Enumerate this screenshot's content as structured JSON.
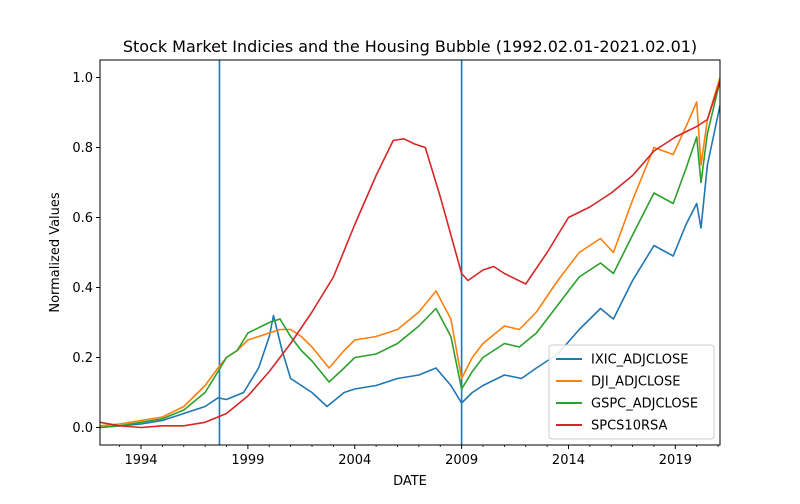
{
  "chart_data": {
    "type": "line",
    "title": "Stock Market Indicies and the Housing Bubble (1992.02.01-2021.02.01)",
    "xlabel": "DATE",
    "ylabel": "Normalized Values",
    "xlim": [
      1992.08,
      2021.09
    ],
    "ylim": [
      -0.05,
      1.05
    ],
    "x_ticks": [
      1994,
      1999,
      2004,
      2009,
      2014,
      2019
    ],
    "x_tick_labels": [
      "1994",
      "1999",
      "2004",
      "2009",
      "2014",
      "2019"
    ],
    "y_ticks": [
      0.0,
      0.2,
      0.4,
      0.6,
      0.8,
      1.0
    ],
    "y_tick_labels": [
      "0.0",
      "0.2",
      "0.4",
      "0.6",
      "0.8",
      "1.0"
    ],
    "grid": false,
    "legend_placement": "lower right",
    "vlines": [
      {
        "x": 1997.67,
        "color": "#1f77b4"
      },
      {
        "x": 2009.0,
        "color": "#1f77b4"
      }
    ],
    "series": [
      {
        "name": "IXIC_ADJCLOSE",
        "color": "#1f77b4",
        "x": [
          1992.08,
          1993.0,
          1994.0,
          1995.0,
          1996.0,
          1997.0,
          1997.6,
          1998.0,
          1998.8,
          1999.5,
          2000.0,
          2000.2,
          2000.6,
          2001.0,
          2001.5,
          2002.0,
          2002.7,
          2003.5,
          2004.0,
          2005.0,
          2006.0,
          2007.0,
          2007.8,
          2008.5,
          2009.0,
          2009.5,
          2010.0,
          2011.0,
          2011.8,
          2012.5,
          2013.5,
          2014.5,
          2015.5,
          2016.1,
          2017.0,
          2018.0,
          2018.9,
          2019.5,
          2020.0,
          2020.2,
          2020.5,
          2021.09
        ],
        "y": [
          0.0,
          0.005,
          0.01,
          0.02,
          0.04,
          0.06,
          0.085,
          0.08,
          0.1,
          0.17,
          0.26,
          0.32,
          0.22,
          0.14,
          0.12,
          0.1,
          0.06,
          0.1,
          0.11,
          0.12,
          0.14,
          0.15,
          0.17,
          0.12,
          0.07,
          0.1,
          0.12,
          0.15,
          0.14,
          0.17,
          0.21,
          0.28,
          0.34,
          0.31,
          0.42,
          0.52,
          0.49,
          0.58,
          0.64,
          0.57,
          0.75,
          0.92
        ]
      },
      {
        "name": "DJI_ADJCLOSE",
        "color": "#ff7f0e",
        "x": [
          1992.08,
          1993.0,
          1994.0,
          1995.0,
          1996.0,
          1997.0,
          1997.6,
          1998.0,
          1998.5,
          1999.0,
          2000.0,
          2000.5,
          2001.0,
          2001.5,
          2002.0,
          2002.8,
          2003.5,
          2004.0,
          2005.0,
          2006.0,
          2007.0,
          2007.8,
          2008.5,
          2009.0,
          2009.5,
          2010.0,
          2011.0,
          2011.7,
          2012.5,
          2013.5,
          2014.5,
          2015.5,
          2016.1,
          2017.0,
          2018.0,
          2018.9,
          2019.5,
          2020.0,
          2020.2,
          2020.5,
          2021.09
        ],
        "y": [
          0.005,
          0.01,
          0.02,
          0.03,
          0.06,
          0.12,
          0.17,
          0.2,
          0.22,
          0.25,
          0.27,
          0.28,
          0.28,
          0.26,
          0.23,
          0.17,
          0.22,
          0.25,
          0.26,
          0.28,
          0.33,
          0.39,
          0.31,
          0.14,
          0.2,
          0.24,
          0.29,
          0.28,
          0.33,
          0.42,
          0.5,
          0.54,
          0.5,
          0.65,
          0.8,
          0.78,
          0.86,
          0.93,
          0.75,
          0.88,
          1.0
        ]
      },
      {
        "name": "GSPC_ADJCLOSE",
        "color": "#2ca02c",
        "x": [
          1992.08,
          1993.0,
          1994.0,
          1995.0,
          1996.0,
          1997.0,
          1997.6,
          1998.0,
          1998.5,
          1999.0,
          2000.0,
          2000.5,
          2001.0,
          2001.5,
          2002.0,
          2002.8,
          2003.5,
          2004.0,
          2005.0,
          2006.0,
          2007.0,
          2007.8,
          2008.5,
          2009.0,
          2009.5,
          2010.0,
          2011.0,
          2011.7,
          2012.5,
          2013.5,
          2014.5,
          2015.5,
          2016.1,
          2017.0,
          2018.0,
          2018.9,
          2019.5,
          2020.0,
          2020.2,
          2020.5,
          2021.09
        ],
        "y": [
          0.0,
          0.005,
          0.015,
          0.025,
          0.05,
          0.1,
          0.16,
          0.2,
          0.22,
          0.27,
          0.3,
          0.31,
          0.26,
          0.22,
          0.19,
          0.13,
          0.17,
          0.2,
          0.21,
          0.24,
          0.29,
          0.34,
          0.26,
          0.11,
          0.16,
          0.2,
          0.24,
          0.23,
          0.27,
          0.35,
          0.43,
          0.47,
          0.44,
          0.55,
          0.67,
          0.64,
          0.74,
          0.83,
          0.7,
          0.84,
          0.99
        ]
      },
      {
        "name": "SPCS10RSA",
        "color": "#d62728",
        "x": [
          1992.08,
          1993.0,
          1994.0,
          1995.0,
          1996.0,
          1997.0,
          1998.0,
          1999.0,
          2000.0,
          2001.0,
          2002.0,
          2003.0,
          2004.0,
          2005.0,
          2005.8,
          2006.3,
          2006.8,
          2007.3,
          2008.0,
          2009.0,
          2009.3,
          2010.0,
          2010.5,
          2011.0,
          2012.0,
          2013.0,
          2014.0,
          2015.0,
          2016.0,
          2017.0,
          2018.0,
          2019.0,
          2020.0,
          2020.5,
          2021.09
        ],
        "y": [
          0.015,
          0.005,
          0.0,
          0.005,
          0.005,
          0.015,
          0.04,
          0.09,
          0.16,
          0.24,
          0.33,
          0.43,
          0.58,
          0.72,
          0.82,
          0.825,
          0.81,
          0.8,
          0.66,
          0.44,
          0.42,
          0.45,
          0.46,
          0.44,
          0.41,
          0.5,
          0.6,
          0.63,
          0.67,
          0.72,
          0.79,
          0.83,
          0.86,
          0.88,
          0.99
        ]
      }
    ]
  }
}
